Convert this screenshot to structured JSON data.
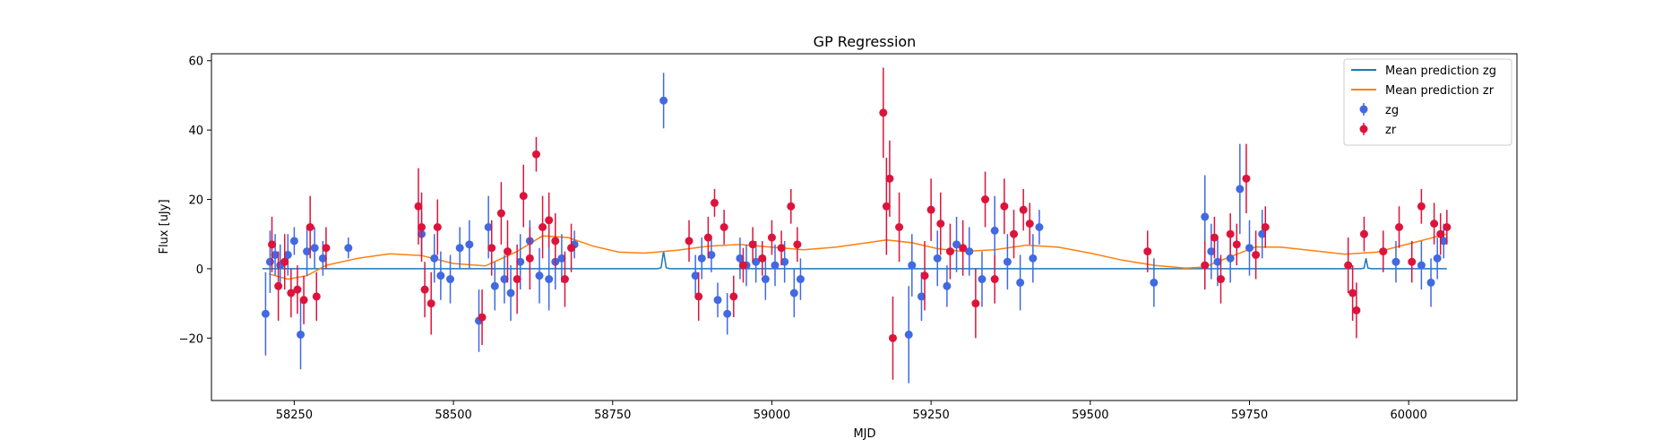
{
  "chart_data": {
    "type": "scatter",
    "title": "GP Regression",
    "xlabel": "MJD",
    "ylabel": "Flux [uJy]",
    "xlim": [
      58120,
      60170
    ],
    "ylim": [
      -38,
      62
    ],
    "xticks": [
      58250,
      58500,
      58750,
      59000,
      59250,
      59500,
      59750,
      60000
    ],
    "yticks": [
      -20,
      0,
      20,
      40,
      60
    ],
    "grid": false,
    "legend_position": "top-right",
    "legend": [
      {
        "label": "Mean prediction zg",
        "kind": "line",
        "color": "#1f77b4"
      },
      {
        "label": "Mean prediction zr",
        "kind": "line",
        "color": "#ff7f0e"
      },
      {
        "label": "zg",
        "kind": "errorbar",
        "color": "#4169e1"
      },
      {
        "label": "zr",
        "kind": "errorbar",
        "color": "#dc143c"
      }
    ],
    "series": [
      {
        "name": "Mean prediction zg",
        "type": "line",
        "color": "#1f77b4",
        "x": [
          58200,
          58820,
          58826,
          58830,
          58834,
          58840,
          59925,
          59930,
          59933,
          59936,
          59942,
          60060
        ],
        "y": [
          0,
          0,
          0.3,
          5,
          0.3,
          0,
          0,
          0.2,
          3,
          0.2,
          0,
          0
        ]
      },
      {
        "name": "Mean prediction zr",
        "type": "line",
        "color": "#ff7f0e",
        "x": [
          58210,
          58240,
          58270,
          58300,
          58350,
          58400,
          58450,
          58500,
          58550,
          58600,
          58640,
          58680,
          58720,
          58760,
          58800,
          58850,
          58900,
          58950,
          59000,
          59050,
          59100,
          59150,
          59180,
          59220,
          59260,
          59300,
          59350,
          59400,
          59450,
          59500,
          59550,
          59600,
          59650,
          59680,
          59720,
          59760,
          59800,
          59850,
          59900,
          59950,
          60000,
          60060
        ],
        "y": [
          -1.5,
          -3,
          -2,
          1,
          3,
          4.3,
          3.8,
          1.5,
          0.8,
          5,
          9.5,
          9,
          6.5,
          4.8,
          4.5,
          5.3,
          6.5,
          7,
          6.2,
          5.5,
          6.2,
          7.5,
          8.3,
          7.5,
          5.8,
          5,
          5.5,
          6.8,
          6.2,
          4.5,
          2.5,
          1,
          0.2,
          0.5,
          3.5,
          6.3,
          6.2,
          5.2,
          4.2,
          4.8,
          7.2,
          10
        ]
      },
      {
        "name": "zg",
        "type": "errorbar",
        "color": "#4169e1",
        "x": [
          58205,
          58212,
          58220,
          58228,
          58240,
          58250,
          58260,
          58270,
          58282,
          58295,
          58335,
          58450,
          58470,
          58480,
          58495,
          58510,
          58525,
          58540,
          58555,
          58565,
          58580,
          58590,
          58605,
          58620,
          58635,
          58650,
          58660,
          58670,
          58690,
          58830,
          58880,
          58890,
          58905,
          58915,
          58930,
          58950,
          58960,
          58975,
          58990,
          59005,
          59020,
          59035,
          59045,
          59215,
          59220,
          59235,
          59260,
          59275,
          59290,
          59310,
          59330,
          59350,
          59370,
          59390,
          59410,
          59420,
          59600,
          59680,
          59690,
          59700,
          59720,
          59735,
          59750,
          59770,
          59980,
          60020,
          60035,
          60045,
          60055
        ],
        "y": [
          -13,
          2,
          4,
          1,
          4,
          8,
          -19,
          5,
          6,
          3,
          6,
          10,
          3,
          -2,
          -3,
          6,
          7,
          -15,
          12,
          -5,
          -3,
          -7,
          2,
          8,
          -2,
          -3,
          2,
          3,
          7,
          48.5,
          -2,
          3,
          4,
          -9,
          -13,
          3,
          1,
          2,
          -3,
          1,
          2,
          -7,
          -3,
          -19,
          1,
          -8,
          3,
          -5,
          7,
          5,
          -3,
          11,
          2,
          -4,
          3,
          12,
          -4,
          15,
          5,
          2,
          3,
          23,
          6,
          10,
          2,
          1,
          -4,
          3,
          8
        ],
        "err": [
          12,
          9,
          6,
          6,
          6,
          4,
          10,
          7,
          6,
          5,
          3,
          6,
          7,
          7,
          7,
          6,
          7,
          9,
          9,
          7,
          7,
          8,
          8,
          6,
          8,
          9,
          8,
          7,
          4,
          8,
          6,
          6,
          5,
          5,
          6,
          6,
          6,
          6,
          6,
          6,
          6,
          7,
          6,
          14,
          9,
          7,
          8,
          6,
          8,
          7,
          8,
          10,
          8,
          8,
          7,
          5,
          7,
          12,
          8,
          7,
          7,
          13,
          8,
          7,
          6,
          7,
          7,
          6,
          5
        ]
      },
      {
        "name": "zr",
        "type": "errorbar",
        "color": "#dc143c",
        "x": [
          58215,
          58225,
          58235,
          58245,
          58255,
          58265,
          58275,
          58285,
          58300,
          58445,
          58450,
          58455,
          58465,
          58475,
          58545,
          58560,
          58575,
          58585,
          58600,
          58610,
          58620,
          58630,
          58640,
          58650,
          58660,
          58675,
          58685,
          58870,
          58885,
          58900,
          58910,
          58925,
          58940,
          58955,
          58970,
          58985,
          59000,
          59015,
          59030,
          59040,
          59175,
          59180,
          59185,
          59190,
          59200,
          59240,
          59250,
          59265,
          59280,
          59300,
          59320,
          59335,
          59350,
          59365,
          59380,
          59395,
          59405,
          59590,
          59680,
          59695,
          59705,
          59720,
          59730,
          59745,
          59760,
          59775,
          59905,
          59912,
          59918,
          59930,
          59960,
          59985,
          60005,
          60020,
          60040,
          60050,
          60060
        ],
        "y": [
          7,
          -5,
          2,
          -7,
          -6,
          -9,
          12,
          -8,
          6,
          18,
          12,
          -6,
          -10,
          12,
          -14,
          6,
          16,
          5,
          -3,
          21,
          3,
          33,
          12,
          14,
          8,
          -3,
          6,
          8,
          -8,
          9,
          19,
          12,
          -8,
          1,
          7,
          3,
          9,
          6,
          18,
          7,
          45,
          18,
          26,
          -20,
          12,
          -2,
          17,
          13,
          5,
          6,
          -10,
          20,
          -3,
          18,
          10,
          17,
          13,
          5,
          1,
          9,
          -3,
          10,
          7,
          26,
          4,
          12,
          1,
          -7,
          -12,
          10,
          5,
          12,
          2,
          18,
          13,
          10,
          12
        ],
        "err": [
          8,
          10,
          8,
          7,
          7,
          7,
          9,
          7,
          6,
          11,
          10,
          8,
          9,
          8,
          8,
          8,
          9,
          9,
          10,
          9,
          9,
          5,
          9,
          8,
          8,
          8,
          7,
          6,
          7,
          6,
          4,
          5,
          6,
          5,
          5,
          5,
          5,
          5,
          5,
          5,
          13,
          14,
          11,
          12,
          10,
          10,
          9,
          9,
          8,
          8,
          10,
          8,
          7,
          8,
          7,
          6,
          6,
          6,
          7,
          6,
          7,
          6,
          6,
          10,
          7,
          6,
          8,
          8,
          8,
          5,
          6,
          6,
          6,
          5,
          6,
          6,
          5
        ]
      }
    ]
  }
}
